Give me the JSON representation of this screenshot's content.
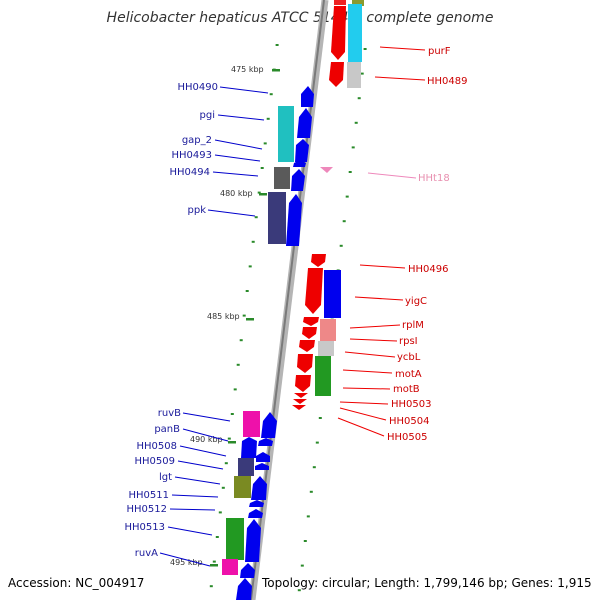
{
  "title": "Helicobacter hepaticus ATCC 51449, complete genome",
  "footer": {
    "accession": "Accession: NC_004917",
    "topology": "Topology: circular; Length: 1,799,146 bp; Genes: 1,915"
  },
  "colors": {
    "backbone": "#8a8a8a",
    "plus_strand_cds": "#0000ee",
    "minus_strand_cds": "#ee0000",
    "left_labels": "#1a1a9a",
    "right_labels": "#cc0000",
    "trna_label": "#e890b0",
    "kbp_ticks": "#2a8a2a"
  },
  "kbp_markers": [
    {
      "label": "475 kbp"
    },
    {
      "label": "480 kbp"
    },
    {
      "label": "485 kbp"
    },
    {
      "label": "490 kbp"
    },
    {
      "label": "495 kbp"
    }
  ],
  "left_labels": [
    {
      "name": "HH0490"
    },
    {
      "name": "pgi"
    },
    {
      "name": "gap_2"
    },
    {
      "name": "HH0493"
    },
    {
      "name": "HH0494"
    },
    {
      "name": "ppk"
    },
    {
      "name": "ruvB"
    },
    {
      "name": "panB"
    },
    {
      "name": "HH0508"
    },
    {
      "name": "HH0509"
    },
    {
      "name": "lgt"
    },
    {
      "name": "HH0511"
    },
    {
      "name": "HH0512"
    },
    {
      "name": "HH0513"
    },
    {
      "name": "ruvA"
    }
  ],
  "right_labels": [
    {
      "name": "purF"
    },
    {
      "name": "HH0489"
    },
    {
      "name": "HHt18"
    },
    {
      "name": "HH0496"
    },
    {
      "name": "yigC"
    },
    {
      "name": "rplM"
    },
    {
      "name": "rpsI"
    },
    {
      "name": "ycbL"
    },
    {
      "name": "motA"
    },
    {
      "name": "motB"
    },
    {
      "name": "HH0503"
    },
    {
      "name": "HH0504"
    },
    {
      "name": "HH0505"
    }
  ]
}
